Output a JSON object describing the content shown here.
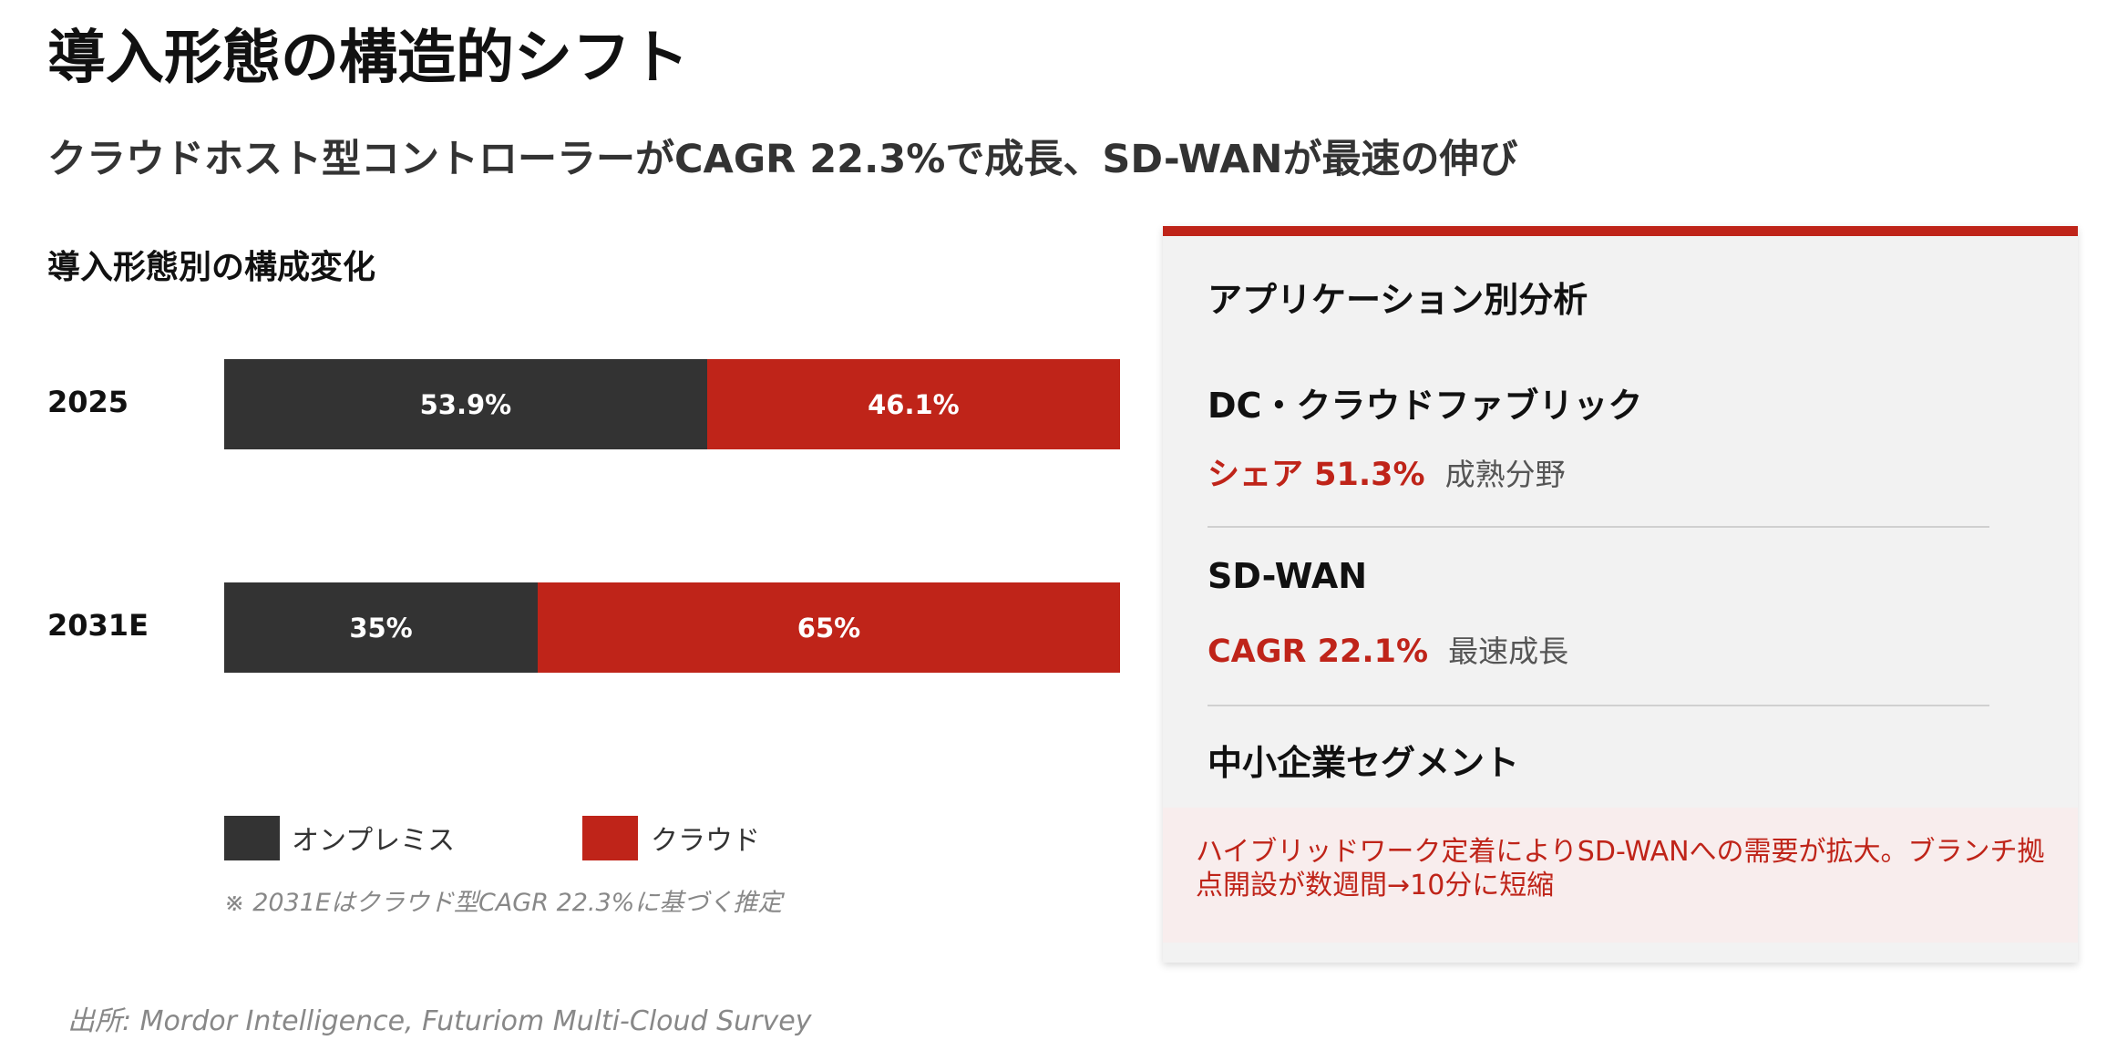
{
  "title": "導入形態の構造的シフト",
  "subtitle": "クラウドホスト型コントローラーがCAGR 22.3%で成長、SD-WANが最速の伸び",
  "chart_data": {
    "type": "bar",
    "orientation": "horizontal",
    "stacked": true,
    "percent_stacked": true,
    "title": "導入形態別の構成変化",
    "categories": [
      "2025",
      "2031E"
    ],
    "series": [
      {
        "name": "オンプレミス",
        "values": [
          53.9,
          35
        ],
        "labels": [
          "53.9%",
          "35%"
        ],
        "color": "#333333"
      },
      {
        "name": "クラウド",
        "values": [
          46.1,
          65
        ],
        "labels": [
          "46.1%",
          "65%"
        ],
        "color": "#bf2419"
      }
    ],
    "xlim": [
      0,
      100
    ],
    "legend": "bottom",
    "grid": false,
    "note": "※ 2031Eはクラウド型CAGR 22.3%に基づく推定"
  },
  "source": "出所: Mordor Intelligence, Futuriom Multi-Cloud Survey",
  "panel": {
    "heading": "アプリケーション別分析",
    "accent_color": "#bf2419",
    "sections": [
      {
        "title": "DC・クラウドファブリック",
        "value": "シェア 51.3%",
        "desc": "成熟分野"
      },
      {
        "title": "SD-WAN",
        "value": "CAGR 22.1%",
        "desc": "最速成長"
      },
      {
        "title": "中小企業セグメント"
      }
    ],
    "callout": "ハイブリッドワーク定着によりSD-WANへの需要が拡大。ブランチ拠点開設が数週間→10分に短縮"
  }
}
